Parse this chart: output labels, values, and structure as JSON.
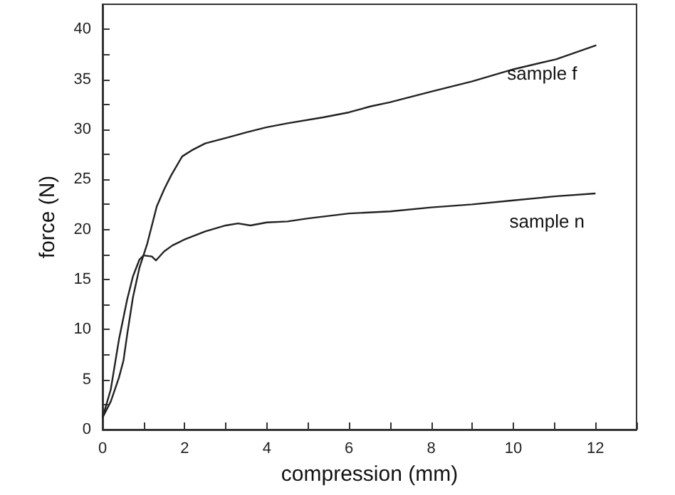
{
  "chart_data": {
    "type": "line",
    "xlabel": "compression (mm)",
    "ylabel": "force (N)",
    "xlim": [
      0,
      13
    ],
    "ylim": [
      0,
      42.5
    ],
    "xticks": [
      0,
      {
        "value": 1,
        "label": null
      },
      2,
      {
        "value": 3,
        "label": null
      },
      4,
      {
        "value": 5,
        "label": null
      },
      6,
      {
        "value": 7,
        "label": null
      },
      8,
      {
        "value": 9,
        "label": null
      },
      10,
      {
        "value": 11,
        "label": null
      },
      12,
      {
        "value": 13,
        "label": null
      }
    ],
    "yticks": [
      0,
      {
        "value": 2.5,
        "label": null
      },
      5,
      {
        "value": 7.5,
        "label": null
      },
      10,
      {
        "value": 12.5,
        "label": null
      },
      15,
      {
        "value": 17.5,
        "label": null
      },
      20,
      {
        "value": 22.5,
        "label": null
      },
      25,
      {
        "value": 27.5,
        "label": null
      },
      30,
      {
        "value": 32.5,
        "label": null
      },
      35,
      {
        "value": 37.5,
        "label": null
      },
      40
    ],
    "grid": false,
    "legend": false,
    "marker": "none",
    "line_style": "solid",
    "series": [
      {
        "name": "sample f",
        "color": "#222222",
        "x": [
          0,
          0.2,
          0.4,
          0.51,
          0.6,
          0.74,
          0.9,
          1.09,
          1.32,
          1.5,
          1.67,
          1.94,
          2.17,
          2.5,
          3.06,
          3.5,
          3.98,
          4.5,
          5.37,
          6.0,
          6.53,
          6.99,
          8.03,
          9.0,
          10.0,
          11.04,
          12.02
        ],
        "values": [
          1.2,
          2.8,
          5.2,
          6.9,
          9.5,
          13.2,
          16.2,
          18.6,
          22.3,
          24.0,
          25.4,
          27.3,
          27.9,
          28.6,
          29.2,
          29.7,
          30.2,
          30.6,
          31.2,
          31.7,
          32.3,
          32.7,
          33.8,
          34.8,
          36.0,
          37.0,
          38.4
        ]
      },
      {
        "name": "sample n",
        "color": "#222222",
        "x": [
          0,
          0.2,
          0.4,
          0.6,
          0.74,
          0.9,
          1.0,
          1.2,
          1.3,
          1.5,
          1.7,
          2.0,
          2.5,
          3.0,
          3.3,
          3.6,
          4.0,
          4.5,
          5.0,
          6.0,
          7.0,
          8.0,
          9.0,
          10.0,
          11.0,
          12.0
        ],
        "values": [
          1.2,
          4.0,
          9.0,
          13.0,
          15.3,
          17.0,
          17.4,
          17.3,
          16.9,
          17.8,
          18.4,
          19.0,
          19.8,
          20.4,
          20.6,
          20.4,
          20.7,
          20.8,
          21.1,
          21.6,
          21.8,
          22.2,
          22.5,
          22.9,
          23.3,
          23.6
        ]
      }
    ]
  }
}
